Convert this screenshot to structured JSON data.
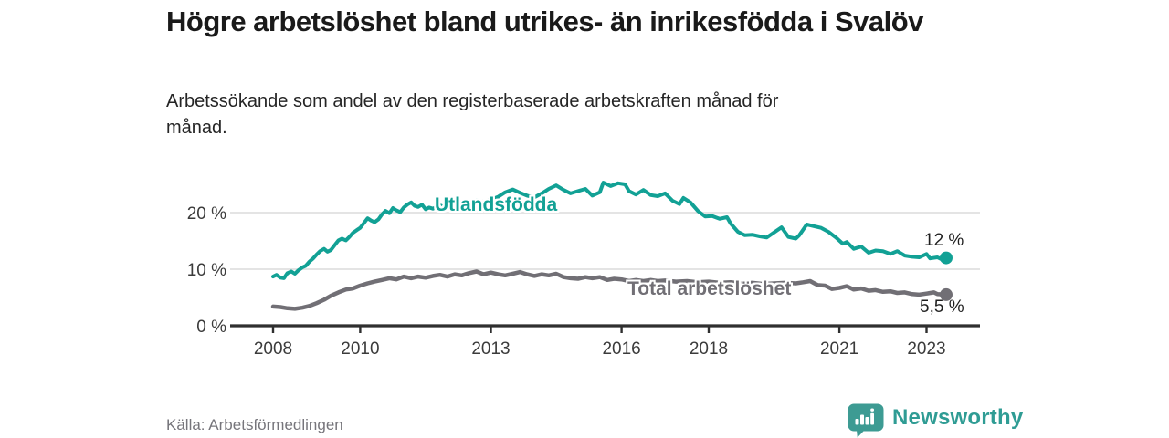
{
  "chart_data": {
    "type": "line",
    "title": "Högre arbetslöshet bland utrikes- än inrikesfödda i Svalöv",
    "subtitle": "Arbetssökande som andel av den registerbaserade arbetskraften månad för månad.",
    "xlabel": "",
    "ylabel": "",
    "x_ticks": [
      2008,
      2010,
      2013,
      2016,
      2018,
      2021,
      2023
    ],
    "y_ticks": [
      0,
      10,
      20
    ],
    "y_tick_suffix": " %",
    "xlim": [
      2007.0,
      2024.3
    ],
    "ylim": [
      0,
      27
    ],
    "grid": "horizontal-light",
    "legend_position": "inline-labels-on-lines",
    "series": [
      {
        "name": "Utlandsfödda",
        "color": "#12a195",
        "end_value_label": "12 %",
        "points": [
          [
            2008.0,
            8.7
          ],
          [
            2008.08,
            9.0
          ],
          [
            2008.17,
            8.5
          ],
          [
            2008.25,
            8.4
          ],
          [
            2008.33,
            9.3
          ],
          [
            2008.42,
            9.6
          ],
          [
            2008.5,
            9.2
          ],
          [
            2008.58,
            9.8
          ],
          [
            2008.67,
            10.3
          ],
          [
            2008.75,
            10.6
          ],
          [
            2008.83,
            11.3
          ],
          [
            2008.92,
            11.9
          ],
          [
            2009.0,
            12.6
          ],
          [
            2009.08,
            13.2
          ],
          [
            2009.17,
            13.6
          ],
          [
            2009.25,
            13.1
          ],
          [
            2009.33,
            13.4
          ],
          [
            2009.42,
            14.3
          ],
          [
            2009.5,
            15.1
          ],
          [
            2009.58,
            15.4
          ],
          [
            2009.67,
            15.1
          ],
          [
            2009.75,
            15.7
          ],
          [
            2009.83,
            16.4
          ],
          [
            2009.92,
            16.9
          ],
          [
            2010.0,
            17.3
          ],
          [
            2010.08,
            18.1
          ],
          [
            2010.17,
            19.0
          ],
          [
            2010.25,
            18.6
          ],
          [
            2010.33,
            18.3
          ],
          [
            2010.42,
            18.8
          ],
          [
            2010.5,
            19.7
          ],
          [
            2010.58,
            20.3
          ],
          [
            2010.67,
            19.9
          ],
          [
            2010.75,
            20.8
          ],
          [
            2010.83,
            20.4
          ],
          [
            2010.92,
            20.1
          ],
          [
            2011.0,
            20.9
          ],
          [
            2011.08,
            21.4
          ],
          [
            2011.17,
            21.8
          ],
          [
            2011.25,
            21.2
          ],
          [
            2011.33,
            21.0
          ],
          [
            2011.42,
            21.4
          ],
          [
            2011.5,
            20.6
          ],
          [
            2011.58,
            20.9
          ],
          [
            2011.67,
            20.7
          ],
          [
            2011.75,
            21.0
          ],
          [
            2011.83,
            21.3
          ],
          [
            2011.92,
            21.0
          ],
          [
            2012.0,
            21.2
          ],
          [
            2012.17,
            21.6
          ],
          [
            2012.33,
            21.3
          ],
          [
            2012.5,
            21.8
          ],
          [
            2012.67,
            22.2
          ],
          [
            2012.83,
            21.9
          ],
          [
            2013.0,
            22.3
          ],
          [
            2013.17,
            22.8
          ],
          [
            2013.33,
            23.6
          ],
          [
            2013.5,
            24.1
          ],
          [
            2013.67,
            23.5
          ],
          [
            2013.83,
            23.0
          ],
          [
            2014.0,
            22.7
          ],
          [
            2014.17,
            23.4
          ],
          [
            2014.33,
            24.2
          ],
          [
            2014.5,
            24.8
          ],
          [
            2014.67,
            24.0
          ],
          [
            2014.83,
            23.4
          ],
          [
            2015.0,
            23.8
          ],
          [
            2015.17,
            24.2
          ],
          [
            2015.33,
            23.0
          ],
          [
            2015.5,
            23.6
          ],
          [
            2015.58,
            25.3
          ],
          [
            2015.75,
            24.7
          ],
          [
            2015.92,
            25.2
          ],
          [
            2016.08,
            25.0
          ],
          [
            2016.17,
            23.8
          ],
          [
            2016.33,
            23.2
          ],
          [
            2016.5,
            24.0
          ],
          [
            2016.67,
            23.1
          ],
          [
            2016.83,
            22.9
          ],
          [
            2017.0,
            23.4
          ],
          [
            2017.17,
            22.1
          ],
          [
            2017.33,
            21.5
          ],
          [
            2017.42,
            22.6
          ],
          [
            2017.58,
            21.8
          ],
          [
            2017.75,
            20.3
          ],
          [
            2017.92,
            19.3
          ],
          [
            2018.08,
            19.4
          ],
          [
            2018.25,
            18.9
          ],
          [
            2018.42,
            19.2
          ],
          [
            2018.5,
            18.1
          ],
          [
            2018.67,
            16.6
          ],
          [
            2018.83,
            16.0
          ],
          [
            2019.0,
            16.1
          ],
          [
            2019.17,
            15.8
          ],
          [
            2019.33,
            15.6
          ],
          [
            2019.5,
            16.5
          ],
          [
            2019.67,
            17.4
          ],
          [
            2019.83,
            15.7
          ],
          [
            2020.0,
            15.4
          ],
          [
            2020.08,
            16.0
          ],
          [
            2020.25,
            17.9
          ],
          [
            2020.42,
            17.6
          ],
          [
            2020.58,
            17.3
          ],
          [
            2020.75,
            16.6
          ],
          [
            2020.92,
            15.6
          ],
          [
            2021.08,
            14.5
          ],
          [
            2021.17,
            14.8
          ],
          [
            2021.33,
            13.6
          ],
          [
            2021.5,
            14.0
          ],
          [
            2021.67,
            12.9
          ],
          [
            2021.83,
            13.3
          ],
          [
            2022.0,
            13.2
          ],
          [
            2022.17,
            12.7
          ],
          [
            2022.33,
            13.2
          ],
          [
            2022.5,
            12.4
          ],
          [
            2022.67,
            12.2
          ],
          [
            2022.83,
            12.1
          ],
          [
            2023.0,
            12.7
          ],
          [
            2023.08,
            11.9
          ],
          [
            2023.25,
            12.1
          ],
          [
            2023.33,
            11.8
          ],
          [
            2023.45,
            12.0
          ]
        ]
      },
      {
        "name": "Total arbetslöshet",
        "color": "#716f75",
        "end_value_label": "5,5 %",
        "points": [
          [
            2008.0,
            3.4
          ],
          [
            2008.17,
            3.3
          ],
          [
            2008.33,
            3.1
          ],
          [
            2008.5,
            3.0
          ],
          [
            2008.67,
            3.2
          ],
          [
            2008.83,
            3.5
          ],
          [
            2009.0,
            4.0
          ],
          [
            2009.17,
            4.6
          ],
          [
            2009.33,
            5.3
          ],
          [
            2009.5,
            5.9
          ],
          [
            2009.67,
            6.4
          ],
          [
            2009.83,
            6.6
          ],
          [
            2010.0,
            7.1
          ],
          [
            2010.17,
            7.5
          ],
          [
            2010.33,
            7.8
          ],
          [
            2010.5,
            8.1
          ],
          [
            2010.67,
            8.4
          ],
          [
            2010.83,
            8.2
          ],
          [
            2011.0,
            8.7
          ],
          [
            2011.17,
            8.4
          ],
          [
            2011.33,
            8.7
          ],
          [
            2011.5,
            8.5
          ],
          [
            2011.67,
            8.8
          ],
          [
            2011.83,
            9.0
          ],
          [
            2012.0,
            8.7
          ],
          [
            2012.17,
            9.1
          ],
          [
            2012.33,
            8.9
          ],
          [
            2012.5,
            9.3
          ],
          [
            2012.67,
            9.6
          ],
          [
            2012.83,
            9.1
          ],
          [
            2013.0,
            9.4
          ],
          [
            2013.17,
            9.1
          ],
          [
            2013.33,
            8.9
          ],
          [
            2013.5,
            9.2
          ],
          [
            2013.67,
            9.5
          ],
          [
            2013.83,
            9.1
          ],
          [
            2014.0,
            8.8
          ],
          [
            2014.17,
            9.1
          ],
          [
            2014.33,
            8.9
          ],
          [
            2014.5,
            9.2
          ],
          [
            2014.67,
            8.6
          ],
          [
            2014.83,
            8.4
          ],
          [
            2015.0,
            8.3
          ],
          [
            2015.17,
            8.6
          ],
          [
            2015.33,
            8.4
          ],
          [
            2015.5,
            8.6
          ],
          [
            2015.67,
            8.1
          ],
          [
            2015.83,
            8.3
          ],
          [
            2016.0,
            8.2
          ],
          [
            2016.17,
            7.9
          ],
          [
            2016.33,
            8.1
          ],
          [
            2016.5,
            7.9
          ],
          [
            2016.67,
            8.1
          ],
          [
            2016.83,
            7.9
          ],
          [
            2017.0,
            8.0
          ],
          [
            2017.25,
            7.8
          ],
          [
            2017.5,
            7.9
          ],
          [
            2017.75,
            7.7
          ],
          [
            2018.0,
            7.8
          ],
          [
            2018.25,
            7.6
          ],
          [
            2018.5,
            7.7
          ],
          [
            2018.75,
            7.5
          ],
          [
            2019.0,
            7.6
          ],
          [
            2019.25,
            7.4
          ],
          [
            2019.5,
            7.5
          ],
          [
            2019.75,
            7.6
          ],
          [
            2020.0,
            7.5
          ],
          [
            2020.17,
            7.7
          ],
          [
            2020.33,
            7.9
          ],
          [
            2020.5,
            7.2
          ],
          [
            2020.67,
            7.1
          ],
          [
            2020.83,
            6.5
          ],
          [
            2021.0,
            6.7
          ],
          [
            2021.17,
            7.0
          ],
          [
            2021.33,
            6.4
          ],
          [
            2021.5,
            6.6
          ],
          [
            2021.67,
            6.2
          ],
          [
            2021.83,
            6.3
          ],
          [
            2022.0,
            6.0
          ],
          [
            2022.17,
            6.1
          ],
          [
            2022.33,
            5.8
          ],
          [
            2022.5,
            5.9
          ],
          [
            2022.67,
            5.6
          ],
          [
            2022.83,
            5.5
          ],
          [
            2023.0,
            5.7
          ],
          [
            2023.17,
            5.9
          ],
          [
            2023.25,
            5.6
          ],
          [
            2023.45,
            5.5
          ]
        ]
      }
    ]
  },
  "footer": {
    "source": "Källa: Arbetsförmedlingen",
    "logo_text": "Newsworthy",
    "logo_icon": "newsworthy-speech-bubble-bar-chart-icon"
  },
  "colors": {
    "accent_teal": "#12a195",
    "series_gray": "#716f75",
    "grid": "#dcdcdc",
    "axis": "#2f2f2f",
    "tick_label": "#3b3b3b",
    "title_text": "#1a1a1a",
    "source_text": "#76757b",
    "logo_teal": "#2f9c94",
    "logo_icon_fill": "#3d9b93"
  }
}
